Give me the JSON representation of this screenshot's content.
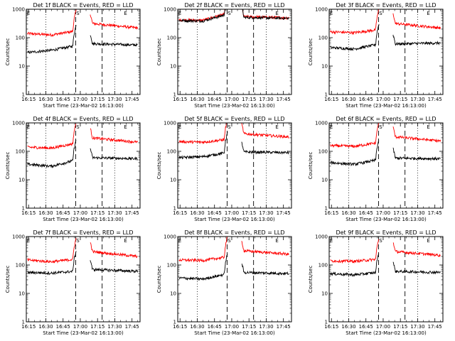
{
  "chart_data": {
    "type": "line",
    "panel_title_suffix": "BLACK = Events, RED = LLD",
    "xlabel": "Start Time (23-Mar-02 16:13:00)",
    "ylabel": "Counts/sec",
    "x_tick_labels": [
      "16:15",
      "16:30",
      "16:45",
      "17:00",
      "17:15",
      "17:30",
      "17:45"
    ],
    "x_tick_minutes": [
      15,
      30,
      45,
      60,
      75,
      90,
      105
    ],
    "xlim_minutes": [
      13,
      112
    ],
    "ylim": [
      1,
      1000
    ],
    "y_scale": "log",
    "y_tick_labels": [
      "1",
      "10",
      "100",
      "1000"
    ],
    "y_tick_values": [
      1,
      10,
      100,
      1000
    ],
    "dotted_lines_minutes": [
      30,
      90
    ],
    "dashed_lines_minutes": [
      56,
      79
    ],
    "gap_minutes": [
      56.5,
      68.5
    ],
    "markers": [
      {
        "label": "E",
        "minute": 13.5
      },
      {
        "label": "S",
        "minute": 56.5
      },
      {
        "label": "E",
        "minute": 98
      }
    ],
    "colors": {
      "events": "#000000",
      "lld": "#ff0000"
    },
    "panels": [
      {
        "title": "Det 1f",
        "events": [
          {
            "x": 14,
            "y": 30
          },
          {
            "x": 35,
            "y": 36
          },
          {
            "x": 55,
            "y": 52
          },
          {
            "x": 69,
            "y": 62
          },
          {
            "x": 110,
            "y": 55
          }
        ],
        "lld": [
          {
            "x": 14,
            "y": 140
          },
          {
            "x": 35,
            "y": 125
          },
          {
            "x": 55,
            "y": 170
          },
          {
            "x": 69,
            "y": 320
          },
          {
            "x": 110,
            "y": 220
          }
        ]
      },
      {
        "title": "Det 2f",
        "events": [
          {
            "x": 14,
            "y": 400
          },
          {
            "x": 35,
            "y": 390
          },
          {
            "x": 55,
            "y": 650
          },
          {
            "x": 69,
            "y": 520
          },
          {
            "x": 110,
            "y": 480
          }
        ],
        "lld": [
          {
            "x": 14,
            "y": 420
          },
          {
            "x": 35,
            "y": 410
          },
          {
            "x": 55,
            "y": 700
          },
          {
            "x": 69,
            "y": 550
          },
          {
            "x": 110,
            "y": 500
          }
        ]
      },
      {
        "title": "Det 3f",
        "events": [
          {
            "x": 14,
            "y": 45
          },
          {
            "x": 35,
            "y": 40
          },
          {
            "x": 55,
            "y": 58
          },
          {
            "x": 69,
            "y": 60
          },
          {
            "x": 110,
            "y": 65
          }
        ],
        "lld": [
          {
            "x": 14,
            "y": 160
          },
          {
            "x": 35,
            "y": 150
          },
          {
            "x": 55,
            "y": 190
          },
          {
            "x": 69,
            "y": 320
          },
          {
            "x": 110,
            "y": 220
          }
        ]
      },
      {
        "title": "Det 4f",
        "events": [
          {
            "x": 14,
            "y": 35
          },
          {
            "x": 35,
            "y": 30
          },
          {
            "x": 55,
            "y": 48
          },
          {
            "x": 69,
            "y": 60
          },
          {
            "x": 110,
            "y": 55
          }
        ],
        "lld": [
          {
            "x": 14,
            "y": 140
          },
          {
            "x": 35,
            "y": 130
          },
          {
            "x": 55,
            "y": 190
          },
          {
            "x": 69,
            "y": 300
          },
          {
            "x": 110,
            "y": 210
          }
        ]
      },
      {
        "title": "Det 5f",
        "events": [
          {
            "x": 14,
            "y": 60
          },
          {
            "x": 35,
            "y": 65
          },
          {
            "x": 55,
            "y": 90
          },
          {
            "x": 69,
            "y": 95
          },
          {
            "x": 110,
            "y": 90
          }
        ],
        "lld": [
          {
            "x": 14,
            "y": 220
          },
          {
            "x": 35,
            "y": 210
          },
          {
            "x": 55,
            "y": 260
          },
          {
            "x": 69,
            "y": 420
          },
          {
            "x": 110,
            "y": 320
          }
        ]
      },
      {
        "title": "Det 6f",
        "events": [
          {
            "x": 14,
            "y": 40
          },
          {
            "x": 35,
            "y": 35
          },
          {
            "x": 55,
            "y": 50
          },
          {
            "x": 69,
            "y": 58
          },
          {
            "x": 110,
            "y": 55
          }
        ],
        "lld": [
          {
            "x": 14,
            "y": 160
          },
          {
            "x": 35,
            "y": 150
          },
          {
            "x": 55,
            "y": 200
          },
          {
            "x": 69,
            "y": 330
          },
          {
            "x": 110,
            "y": 230
          }
        ]
      },
      {
        "title": "Det 7f",
        "events": [
          {
            "x": 14,
            "y": 55
          },
          {
            "x": 35,
            "y": 52
          },
          {
            "x": 55,
            "y": 60
          },
          {
            "x": 69,
            "y": 70
          },
          {
            "x": 110,
            "y": 60
          }
        ],
        "lld": [
          {
            "x": 14,
            "y": 150
          },
          {
            "x": 35,
            "y": 130
          },
          {
            "x": 55,
            "y": 160
          },
          {
            "x": 69,
            "y": 300
          },
          {
            "x": 110,
            "y": 200
          }
        ]
      },
      {
        "title": "Det 8f",
        "events": [
          {
            "x": 14,
            "y": 35
          },
          {
            "x": 35,
            "y": 32
          },
          {
            "x": 55,
            "y": 48
          },
          {
            "x": 69,
            "y": 55
          },
          {
            "x": 110,
            "y": 50
          }
        ],
        "lld": [
          {
            "x": 14,
            "y": 150
          },
          {
            "x": 35,
            "y": 145
          },
          {
            "x": 55,
            "y": 190
          },
          {
            "x": 69,
            "y": 320
          },
          {
            "x": 110,
            "y": 240
          }
        ]
      },
      {
        "title": "Det 9f",
        "events": [
          {
            "x": 14,
            "y": 50
          },
          {
            "x": 35,
            "y": 45
          },
          {
            "x": 55,
            "y": 55
          },
          {
            "x": 69,
            "y": 60
          },
          {
            "x": 110,
            "y": 55
          }
        ],
        "lld": [
          {
            "x": 14,
            "y": 140
          },
          {
            "x": 35,
            "y": 135
          },
          {
            "x": 55,
            "y": 160
          },
          {
            "x": 69,
            "y": 300
          },
          {
            "x": 110,
            "y": 220
          }
        ]
      }
    ]
  }
}
